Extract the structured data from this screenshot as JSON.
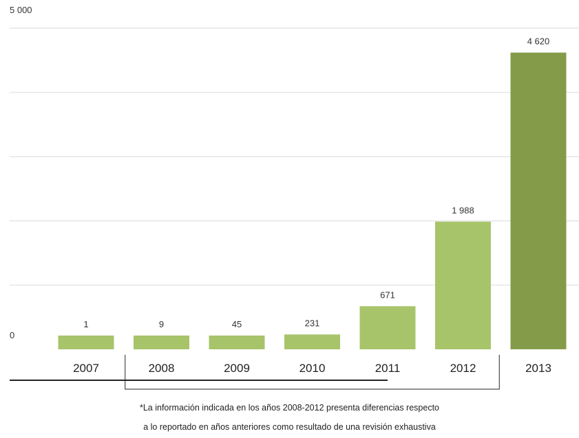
{
  "chart_data": {
    "type": "bar",
    "categories": [
      "2007",
      "2008",
      "2009",
      "2010",
      "2011",
      "2012",
      "2013"
    ],
    "values": [
      1,
      9,
      45,
      231,
      671,
      1988,
      4620
    ],
    "value_labels": [
      "1",
      "9",
      "45",
      "231",
      "671",
      "1 988",
      "4 620"
    ],
    "ylim": [
      0,
      5000
    ],
    "ytick_labels": [
      "0",
      "5 000"
    ],
    "grid": true,
    "colors": {
      "bar": "#a7c46a",
      "bar_highlight": "#849c49",
      "grid": "#e6e6e6",
      "bracket": "#222222"
    },
    "highlight_index": 6
  },
  "footnote": {
    "line1": "*La información indicada en los años 2008-2012 presenta diferencias respecto",
    "line2": "a lo reportado en años anteriores como resultado de una revisión exhaustiva"
  }
}
